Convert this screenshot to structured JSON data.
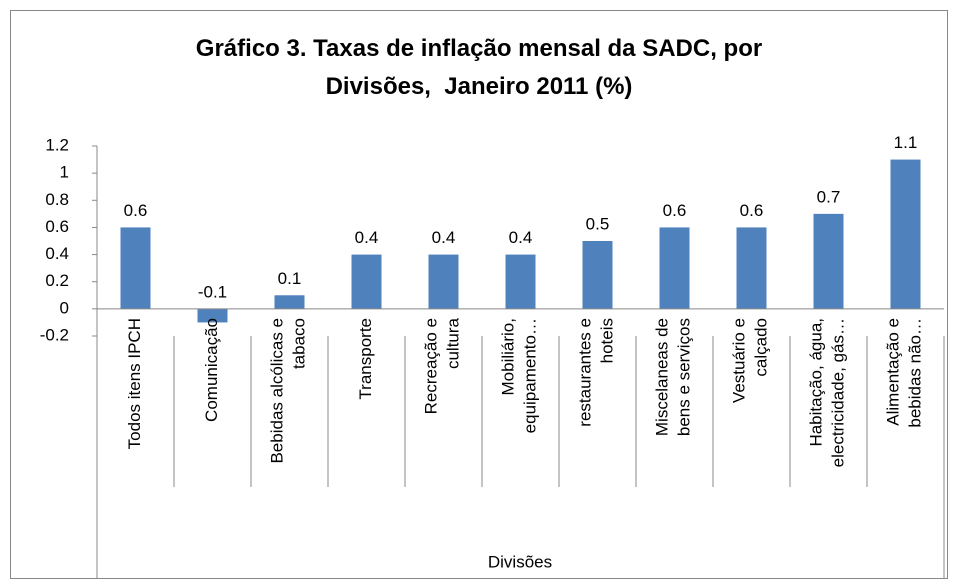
{
  "chart_data": {
    "type": "bar",
    "title": "Gráfico 3. Taxas de inflação mensal da SADC, por\nDivisões,  Janeiro 2011 (%)",
    "x_label": "Divisões",
    "categories": [
      "Todos itens IPCH",
      "Comunicação",
      "Bebidas alcólicas e\ntabaco",
      "Transporte",
      "Recreação e\ncultura",
      "Mobiliário,\nequipamento…",
      "restaurantes e\nhoteis",
      "Miscelaneas de\nbens e serviços",
      "Vestuário e\ncalçado",
      "Habitação, água,\nelectricidade, gás…",
      "Alimentação e\nbebidas não…"
    ],
    "values": [
      0.6,
      -0.1,
      0.1,
      0.4,
      0.4,
      0.4,
      0.5,
      0.6,
      0.6,
      0.7,
      1.1
    ],
    "color": "#4f81bd",
    "ylim": [
      -0.2,
      1.2
    ],
    "yticks": [
      -0.2,
      0,
      0.2,
      0.4,
      0.6,
      0.8,
      1,
      1.2
    ],
    "grid": false
  }
}
